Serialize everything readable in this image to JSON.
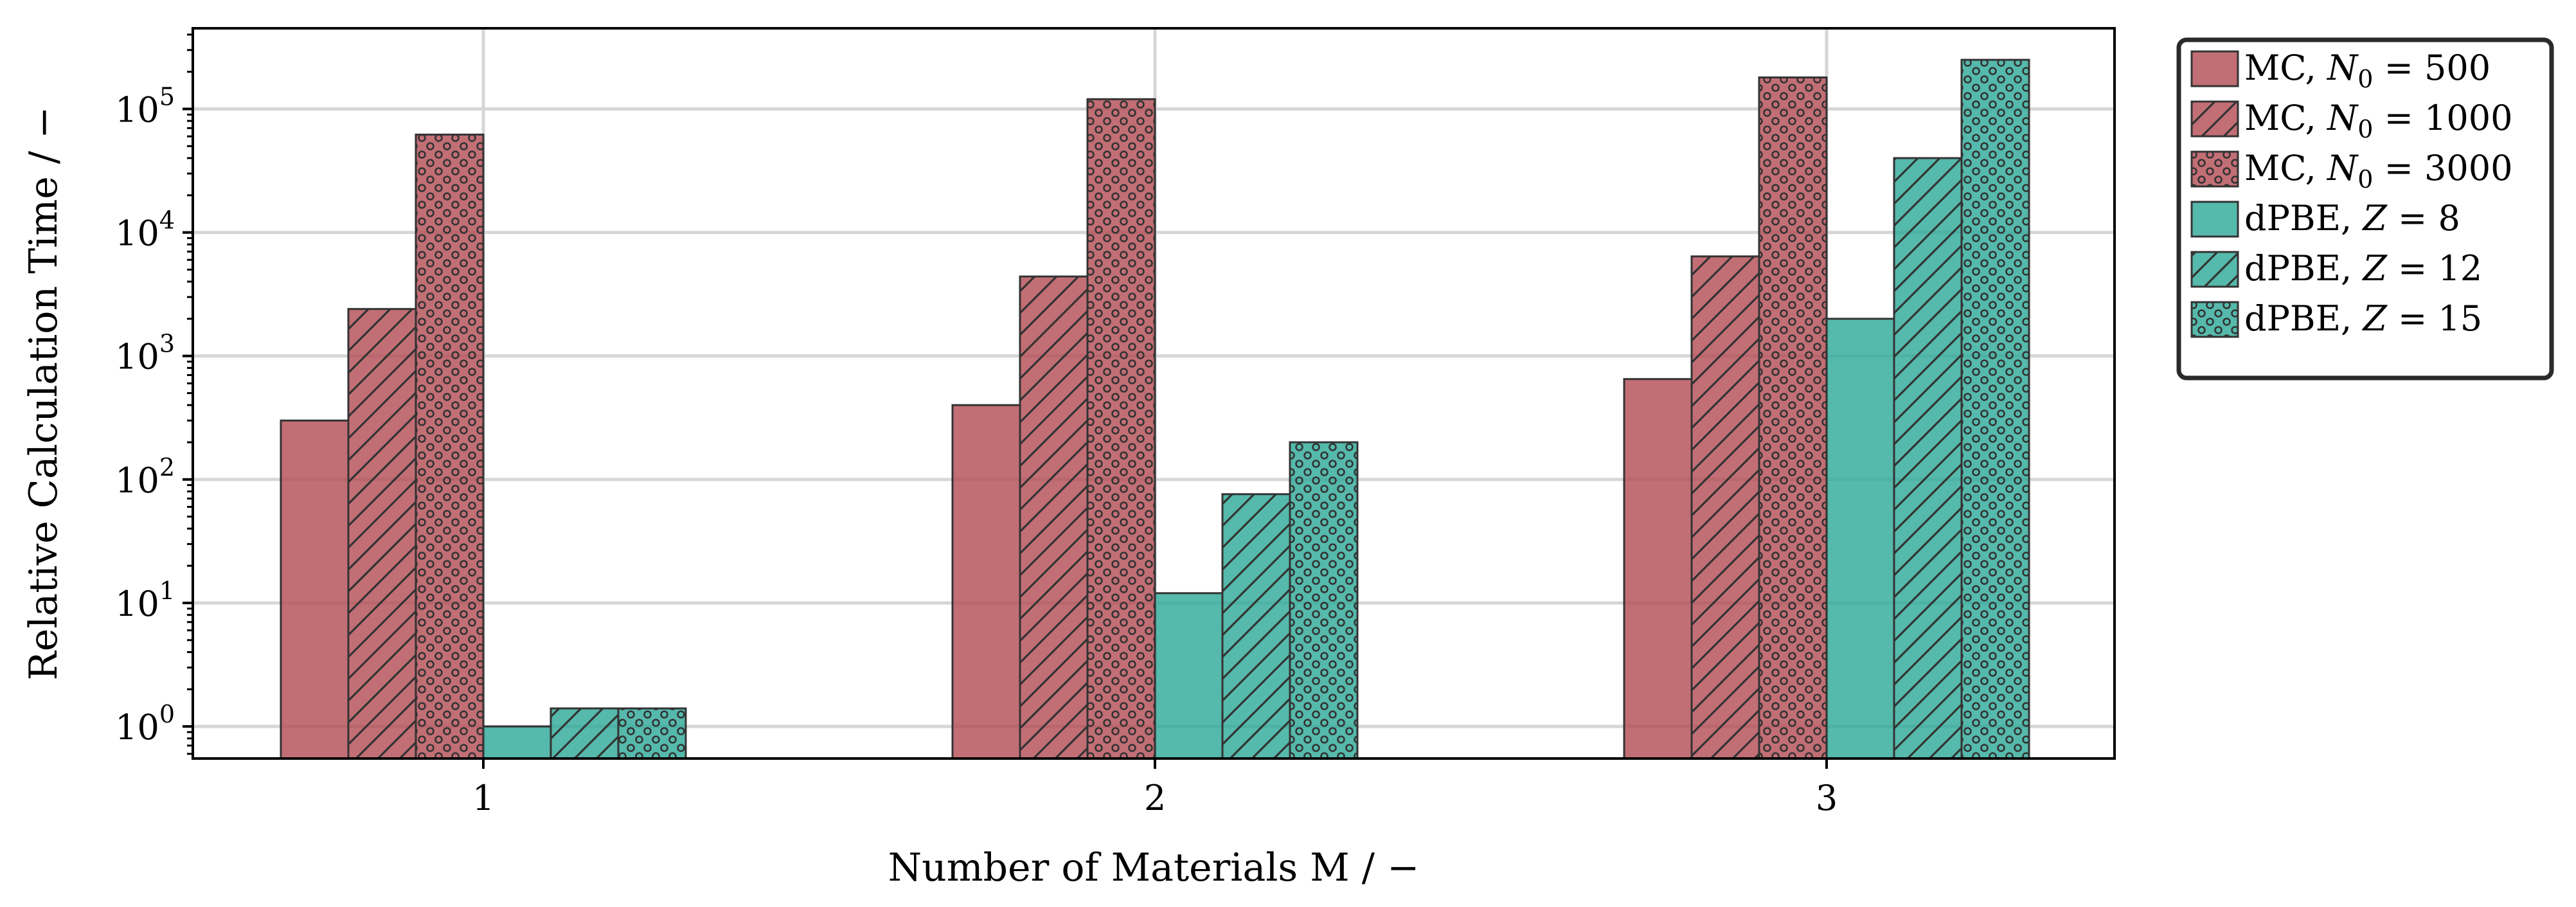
{
  "chart_data": {
    "type": "bar",
    "xlabel": "Number of Materials M / −",
    "ylabel": "Relative Calculation Time / −",
    "categories": [
      "1",
      "2",
      "3"
    ],
    "yscale": "log",
    "ylim": [
      0.55,
      450000
    ],
    "yticks": [
      {
        "value": 1,
        "base": "10",
        "exp": "0"
      },
      {
        "value": 10,
        "base": "10",
        "exp": "1"
      },
      {
        "value": 100,
        "base": "10",
        "exp": "2"
      },
      {
        "value": 1000,
        "base": "10",
        "exp": "3"
      },
      {
        "value": 10000,
        "base": "10",
        "exp": "4"
      },
      {
        "value": 100000,
        "base": "10",
        "exp": "5"
      }
    ],
    "grid": true,
    "legend_position": "outside-right",
    "series": [
      {
        "name": "MC, N₀ = 500",
        "legend": {
          "prefix": "MC, ",
          "var": "N",
          "sub": "0",
          "suffix": " = 500"
        },
        "color": "#b34a52",
        "hatch": "none",
        "values": [
          300,
          400,
          650
        ]
      },
      {
        "name": "MC, N₀ = 1000",
        "legend": {
          "prefix": "MC, ",
          "var": "N",
          "sub": "0",
          "suffix": " = 1000"
        },
        "color": "#b34a52",
        "hatch": "diagonal",
        "values": [
          2400,
          4400,
          6400
        ]
      },
      {
        "name": "MC, N₀ = 3000",
        "legend": {
          "prefix": "MC, ",
          "var": "N",
          "sub": "0",
          "suffix": " = 3000"
        },
        "color": "#b34a52",
        "hatch": "dots",
        "values": [
          62000,
          120000,
          180000
        ]
      },
      {
        "name": "dPBE, Z = 8",
        "legend": {
          "prefix": "dPBE, ",
          "var": "Z",
          "sub": "",
          "suffix": " = 8"
        },
        "color": "#2aa796",
        "hatch": "none",
        "values": [
          1.0,
          12,
          2000
        ]
      },
      {
        "name": "dPBE, Z = 12",
        "legend": {
          "prefix": "dPBE, ",
          "var": "Z",
          "sub": "",
          "suffix": " = 12"
        },
        "color": "#2aa796",
        "hatch": "diagonal",
        "values": [
          1.4,
          76,
          40000
        ]
      },
      {
        "name": "dPBE, Z = 15",
        "legend": {
          "prefix": "dPBE, ",
          "var": "Z",
          "sub": "",
          "suffix": " = 15"
        },
        "color": "#2aa796",
        "hatch": "dots",
        "values": [
          1.4,
          200,
          250000
        ]
      }
    ]
  }
}
